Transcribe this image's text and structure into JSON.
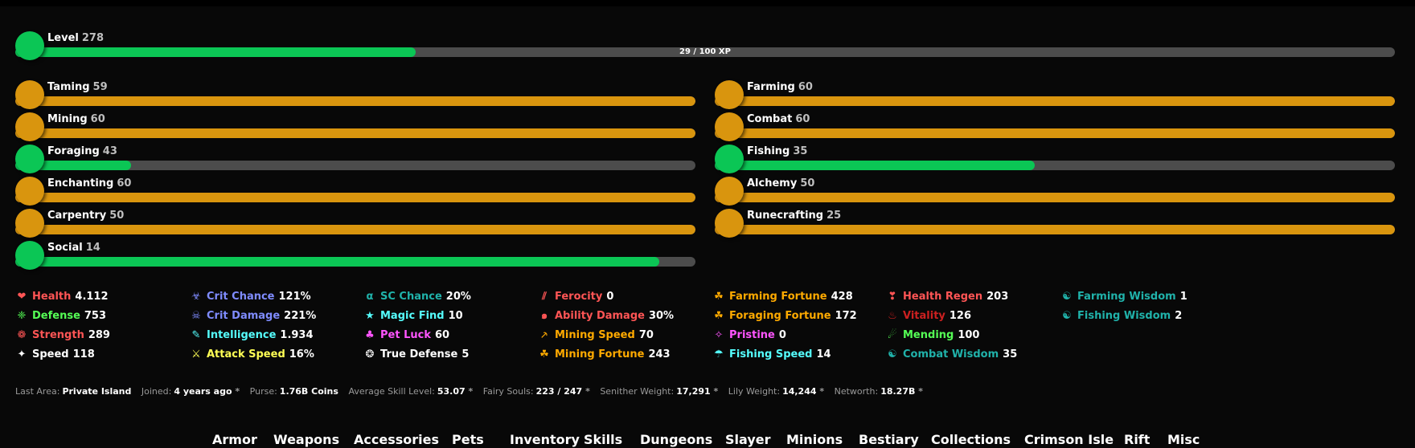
{
  "level": {
    "label": "Level",
    "value": "278",
    "xp_text": "29 / 100 XP",
    "progress": 0.29,
    "color": "#0bc655"
  },
  "skills_left": [
    {
      "name": "Taming",
      "level": "59",
      "progress": 1.0,
      "color": "#d9950e",
      "maxed": true
    },
    {
      "name": "Mining",
      "level": "60",
      "progress": 1.0,
      "color": "#d9950e",
      "maxed": true
    },
    {
      "name": "Foraging",
      "level": "43",
      "progress": 0.17,
      "color": "#0bc655",
      "maxed": false
    },
    {
      "name": "Enchanting",
      "level": "60",
      "progress": 1.0,
      "color": "#d9950e",
      "maxed": true
    },
    {
      "name": "Carpentry",
      "level": "50",
      "progress": 1.0,
      "color": "#d9950e",
      "maxed": true
    },
    {
      "name": "Social",
      "level": "14",
      "progress": 0.947,
      "color": "#0bc655",
      "maxed": false
    }
  ],
  "skills_right": [
    {
      "name": "Farming",
      "level": "60",
      "progress": 1.0,
      "color": "#d9950e",
      "maxed": true
    },
    {
      "name": "Combat",
      "level": "60",
      "progress": 1.0,
      "color": "#d9950e",
      "maxed": true
    },
    {
      "name": "Fishing",
      "level": "35",
      "progress": 0.47,
      "color": "#0bc655",
      "maxed": false
    },
    {
      "name": "Alchemy",
      "level": "50",
      "progress": 1.0,
      "color": "#d9950e",
      "maxed": true
    },
    {
      "name": "Runecrafting",
      "level": "25",
      "progress": 1.0,
      "color": "#d9950e",
      "maxed": true
    }
  ],
  "stats": [
    [
      {
        "icon": "heart-icon",
        "glyph": "❤",
        "label": "Health",
        "value": "4.112",
        "color": "#ff5555"
      },
      {
        "icon": "defense-icon",
        "glyph": "❈",
        "label": "Defense",
        "value": "753",
        "color": "#55ff55"
      },
      {
        "icon": "strength-icon",
        "glyph": "❁",
        "label": "Strength",
        "value": "289",
        "color": "#ff5555"
      },
      {
        "icon": "speed-icon",
        "glyph": "✦",
        "label": "Speed",
        "value": "118",
        "color": "#ffffff"
      }
    ],
    [
      {
        "icon": "crit-chance-icon",
        "glyph": "☣",
        "label": "Crit Chance",
        "value": "121%",
        "color": "#7f8cff"
      },
      {
        "icon": "crit-damage-icon",
        "glyph": "☠",
        "label": "Crit Damage",
        "value": "221%",
        "color": "#7f8cff"
      },
      {
        "icon": "intelligence-icon",
        "glyph": "✎",
        "label": "Intelligence",
        "value": "1.934",
        "color": "#55ffff"
      },
      {
        "icon": "attack-speed-icon",
        "glyph": "⚔",
        "label": "Attack Speed",
        "value": "16%",
        "color": "#ffff55"
      }
    ],
    [
      {
        "icon": "sc-chance-icon",
        "glyph": "α",
        "label": "SC Chance",
        "value": "20%",
        "color": "#20b2aa"
      },
      {
        "icon": "magic-find-icon",
        "glyph": "★",
        "label": "Magic Find",
        "value": "10",
        "color": "#55ffff"
      },
      {
        "icon": "pet-luck-icon",
        "glyph": "♣",
        "label": "Pet Luck",
        "value": "60",
        "color": "#ff55ff"
      },
      {
        "icon": "true-defense-icon",
        "glyph": "❂",
        "label": "True Defense",
        "value": "5",
        "color": "#ffffff"
      }
    ],
    [
      {
        "icon": "ferocity-icon",
        "glyph": "⫽",
        "label": "Ferocity",
        "value": "0",
        "color": "#ff5555"
      },
      {
        "icon": "ability-damage-icon",
        "glyph": "๑",
        "label": "Ability Damage",
        "value": "30%",
        "color": "#ff5555"
      },
      {
        "icon": "mining-speed-icon",
        "glyph": "⸕",
        "label": "Mining Speed",
        "value": "70",
        "color": "#ffaa00"
      },
      {
        "icon": "mining-fortune-icon",
        "glyph": "☘",
        "label": "Mining Fortune",
        "value": "243",
        "color": "#ffaa00"
      }
    ],
    [
      {
        "icon": "farming-fortune-icon",
        "glyph": "☘",
        "label": "Farming Fortune",
        "value": "428",
        "color": "#ffaa00"
      },
      {
        "icon": "foraging-fortune-icon",
        "glyph": "☘",
        "label": "Foraging Fortune",
        "value": "172",
        "color": "#ffaa00"
      },
      {
        "icon": "pristine-icon",
        "glyph": "✧",
        "label": "Pristine",
        "value": "0",
        "color": "#ff55ff"
      },
      {
        "icon": "fishing-speed-icon",
        "glyph": "☂",
        "label": "Fishing Speed",
        "value": "14",
        "color": "#55ffff"
      }
    ],
    [
      {
        "icon": "health-regen-icon",
        "glyph": "❣",
        "label": "Health Regen",
        "value": "203",
        "color": "#ff5555"
      },
      {
        "icon": "vitality-icon",
        "glyph": "♨",
        "label": "Vitality",
        "value": "126",
        "color": "#cc2020"
      },
      {
        "icon": "mending-icon",
        "glyph": "☄",
        "label": "Mending",
        "value": "100",
        "color": "#55ff55"
      },
      {
        "icon": "combat-wisdom-icon",
        "glyph": "☯",
        "label": "Combat Wisdom",
        "value": "35",
        "color": "#20b2aa"
      }
    ],
    [
      {
        "icon": "farming-wisdom-icon",
        "glyph": "☯",
        "label": "Farming Wisdom",
        "value": "1",
        "color": "#20b2aa"
      },
      {
        "icon": "fishing-wisdom-icon",
        "glyph": "☯",
        "label": "Fishing Wisdom",
        "value": "2",
        "color": "#20b2aa"
      }
    ]
  ],
  "info": {
    "last_area_label": "Last Area:",
    "last_area": "Private Island",
    "joined_label": "Joined:",
    "joined": "4 years ago",
    "purse_label": "Purse:",
    "purse": "1.76B Coins",
    "avg_skill_label": "Average Skill Level:",
    "avg_skill": "53.07",
    "fairy_label": "Fairy Souls:",
    "fairy": "223 / 247",
    "senither_label": "Senither Weight:",
    "senither": "17,291",
    "lily_label": "Lily Weight:",
    "lily": "14,244",
    "networth_label": "Networth:",
    "networth": "18.27B",
    "star": "*"
  },
  "tabs": [
    "Armor",
    "Weapons",
    "Accessories",
    "Pets",
    "Inventory",
    "Skills",
    "Dungeons",
    "Slayer",
    "Minions",
    "Bestiary",
    "Collections",
    "Crimson Isle",
    "Rift",
    "Misc"
  ]
}
